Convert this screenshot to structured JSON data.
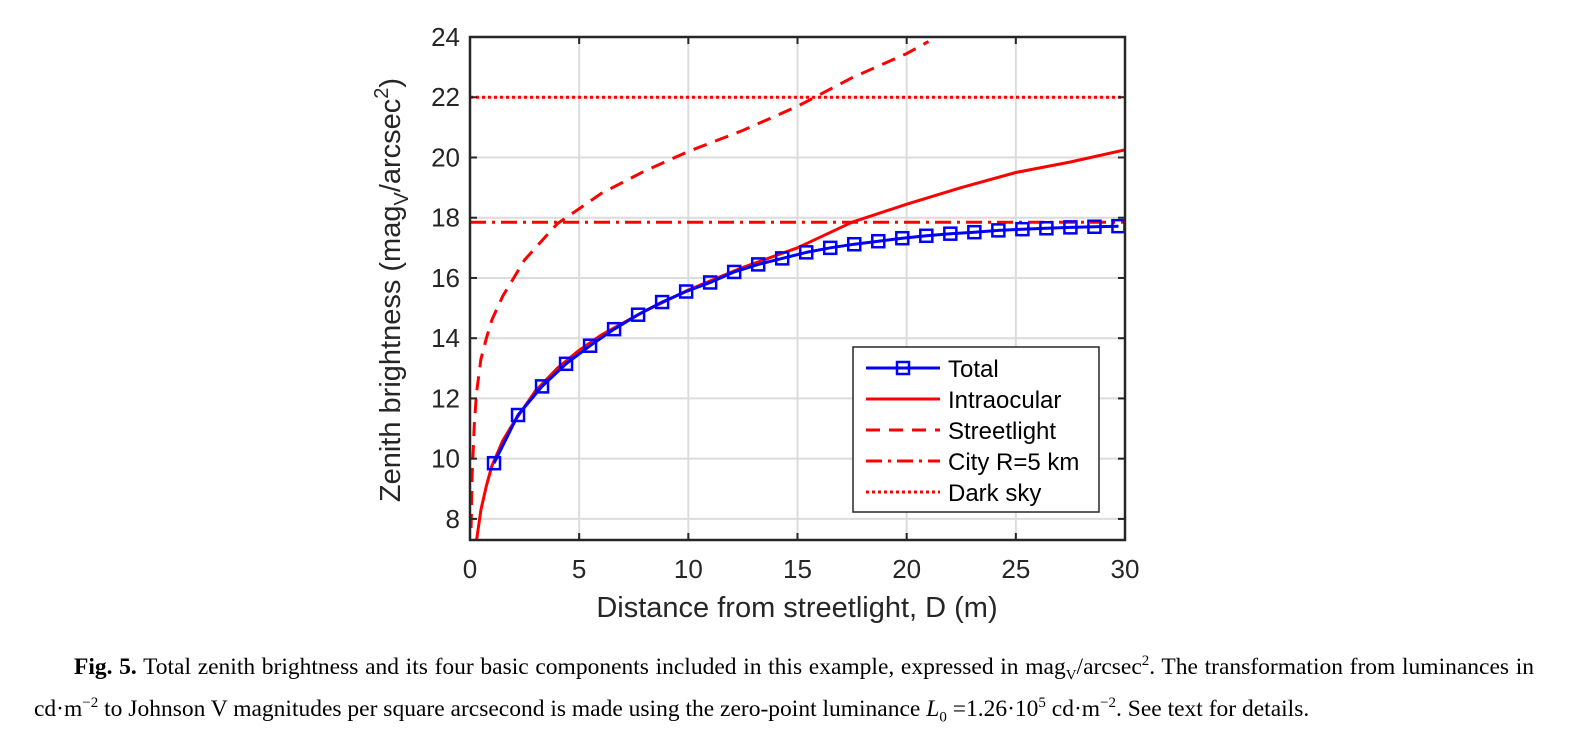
{
  "chart_data": {
    "type": "line",
    "xlabel": "Distance from streetlight, D (m)",
    "ylabel_parts": {
      "main": "Zenith brightness (mag",
      "sub": "V",
      "mid": "/arcsec",
      "sup": "2",
      "end": ")"
    },
    "xlim": [
      0,
      30
    ],
    "ylim": [
      7.3,
      24
    ],
    "xticks": [
      0,
      5,
      10,
      15,
      20,
      25,
      30
    ],
    "yticks": [
      8,
      10,
      12,
      14,
      16,
      18,
      20,
      22,
      24
    ],
    "grid": true,
    "legend_position": "lower-right",
    "colors": {
      "total": "#0000ff",
      "components": "#ff0000"
    },
    "series": [
      {
        "name": "Total",
        "style": "solid-square-markers",
        "color": "#0000ff",
        "x": [
          1.1,
          2.2,
          3.3,
          4.4,
          5.5,
          6.6,
          7.7,
          8.8,
          9.9,
          11.0,
          12.1,
          13.2,
          14.3,
          15.4,
          16.5,
          17.6,
          18.7,
          19.8,
          20.9,
          22.0,
          23.1,
          24.2,
          25.3,
          26.4,
          27.5,
          28.6,
          29.7
        ],
        "y": [
          9.85,
          11.45,
          12.4,
          13.15,
          13.75,
          14.3,
          14.78,
          15.2,
          15.55,
          15.85,
          16.2,
          16.45,
          16.65,
          16.85,
          17.0,
          17.12,
          17.22,
          17.32,
          17.4,
          17.47,
          17.52,
          17.58,
          17.62,
          17.65,
          17.68,
          17.7,
          17.72
        ]
      },
      {
        "name": "Intraocular",
        "style": "solid",
        "color": "#ff0000",
        "x": [
          0.3,
          0.5,
          0.75,
          1.0,
          1.5,
          2.0,
          3.0,
          4.0,
          5.0,
          6.0,
          8.0,
          10.0,
          12.5,
          15.0,
          17.5,
          20.0,
          22.5,
          25.0,
          27.5,
          30.0
        ],
        "y": [
          7.3,
          8.3,
          9.1,
          9.75,
          10.6,
          11.2,
          12.25,
          13.0,
          13.6,
          14.1,
          14.9,
          15.6,
          16.35,
          17.0,
          17.85,
          18.45,
          19.0,
          19.5,
          19.85,
          20.25
        ]
      },
      {
        "name": "Streetlight",
        "style": "dashed",
        "color": "#ff0000",
        "x": [
          0.05,
          0.1,
          0.2,
          0.3,
          0.5,
          0.75,
          1.0,
          1.5,
          2.0,
          2.5,
          3.0,
          4.0,
          5.0,
          6.0,
          8.0,
          10.0,
          12.5,
          15.0,
          17.5,
          20.0,
          21.0
        ],
        "y": [
          7.7,
          9.5,
          11.2,
          12.2,
          13.3,
          14.0,
          14.6,
          15.4,
          16.0,
          16.6,
          17.0,
          17.8,
          18.3,
          18.8,
          19.55,
          20.2,
          20.9,
          21.7,
          22.65,
          23.45,
          23.85
        ]
      },
      {
        "name": "City R=5 km",
        "style": "dash-dot",
        "color": "#ff0000",
        "x": [
          0,
          30
        ],
        "y": [
          17.85,
          17.85
        ]
      },
      {
        "name": "Dark sky",
        "style": "dotted",
        "color": "#ff0000",
        "x": [
          0,
          30
        ],
        "y": [
          22.0,
          22.0
        ]
      }
    ]
  },
  "caption": {
    "label": "Fig. 5.",
    "text1": " Total zenith brightness and its four basic components included in this example, expressed in mag",
    "sub_v": "V",
    "text2": "/arcsec",
    "sup2": "2",
    "text3": ". The transformation from luminances in cd·m",
    "supm2a": "−2",
    "text4": " to Johnson V magnitudes per square arcsecond is made using the zero-point luminance ",
    "l0": "L",
    "l0sub": "0",
    "text5": " =1.26·10",
    "sup5": "5",
    "text6": " cd·m",
    "supm2b": "−2",
    "text7": ". See text for details."
  }
}
